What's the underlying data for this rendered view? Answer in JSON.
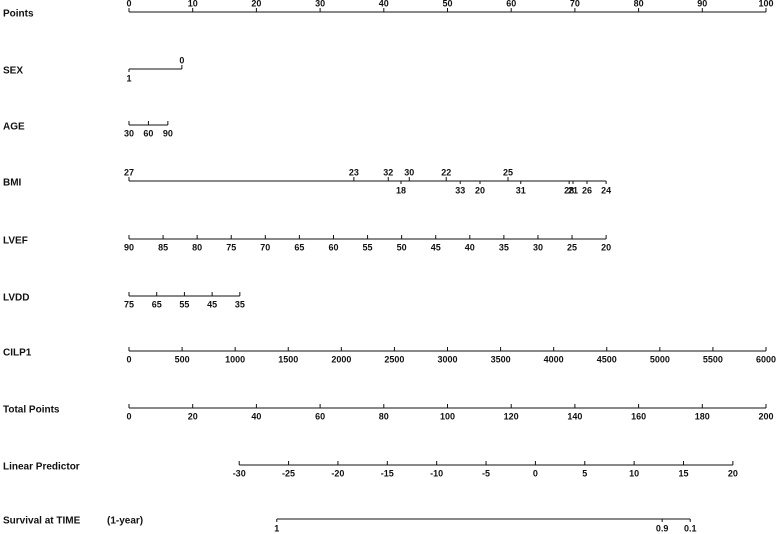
{
  "chart_data": {
    "type": "nomogram",
    "rows": [
      {
        "label": "Points",
        "kind": "linear",
        "lim": [
          0,
          100
        ],
        "ticks": [
          0,
          10,
          20,
          30,
          40,
          50,
          60,
          70,
          80,
          90,
          100
        ],
        "points": [
          0,
          100
        ],
        "side": "top"
      },
      {
        "label": "SEX",
        "kind": "categorical",
        "categories": [
          "1",
          "0"
        ],
        "points": [
          0,
          8.3
        ],
        "sides": [
          "bottom",
          "top"
        ]
      },
      {
        "label": "AGE",
        "kind": "linear",
        "lim": [
          30,
          90
        ],
        "ticks": [
          30,
          60,
          90
        ],
        "points": [
          0,
          6.1
        ],
        "side": "bottom"
      },
      {
        "label": "BMI",
        "kind": "categorical",
        "categories": [
          "27",
          "23",
          "32",
          "30",
          "22",
          "25",
          "18",
          "33",
          "20",
          "31",
          "28",
          "21",
          "26",
          "24"
        ],
        "points": [
          0,
          35.3,
          40.7,
          44.0,
          49.8,
          59.5,
          42.7,
          52.0,
          55.1,
          61.5,
          69.1,
          69.7,
          71.9,
          74.9
        ],
        "sides": [
          "top",
          "top",
          "top",
          "top",
          "top",
          "top",
          "bottom",
          "bottom",
          "bottom",
          "bottom",
          "bottom",
          "bottom",
          "bottom",
          "bottom"
        ]
      },
      {
        "label": "LVEF",
        "kind": "linear",
        "lim": [
          90,
          20
        ],
        "ticks": [
          90,
          85,
          80,
          75,
          70,
          65,
          60,
          55,
          50,
          45,
          40,
          35,
          30,
          25,
          20
        ],
        "points": [
          0,
          74.9
        ],
        "side": "bottom"
      },
      {
        "label": "LVDD",
        "kind": "linear",
        "lim": [
          75,
          35
        ],
        "ticks": [
          75,
          65,
          55,
          45,
          35
        ],
        "points": [
          0,
          17.4
        ],
        "side": "bottom"
      },
      {
        "label": "CILP1",
        "kind": "linear",
        "lim": [
          0,
          6000
        ],
        "ticks": [
          0,
          500,
          1000,
          1500,
          2000,
          2500,
          3000,
          3500,
          4000,
          4500,
          5000,
          5500,
          6000
        ],
        "points": [
          0,
          100
        ],
        "side": "bottom"
      },
      {
        "label": "Total Points",
        "kind": "linear",
        "lim": [
          0,
          200
        ],
        "ticks": [
          0,
          20,
          40,
          60,
          80,
          100,
          120,
          140,
          160,
          180,
          200
        ],
        "points": [
          0,
          100
        ],
        "side": "bottom"
      },
      {
        "label": "Linear Predictor",
        "kind": "linear",
        "lim": [
          -30,
          20
        ],
        "ticks": [
          -30,
          -25,
          -20,
          -15,
          -10,
          -5,
          0,
          5,
          10,
          15,
          20
        ],
        "points": [
          17.3,
          94.8
        ],
        "side": "bottom"
      },
      {
        "label": "Survival at TIME",
        "note": "(1-year)",
        "kind": "categorical",
        "categories": [
          "1",
          "0.9",
          "0.1"
        ],
        "points": [
          23.2,
          83.7,
          88.1
        ],
        "sides": [
          "bottom",
          "bottom",
          "bottom"
        ]
      }
    ]
  }
}
